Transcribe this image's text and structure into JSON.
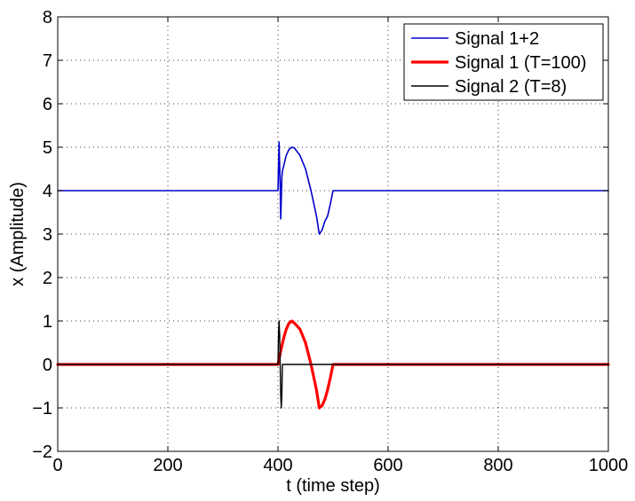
{
  "chart_data": {
    "type": "line",
    "xlabel": "t (time step)",
    "ylabel": "x (Amplitude)",
    "xlim": [
      0,
      1000
    ],
    "ylim": [
      -2,
      8
    ],
    "xticks": [
      0,
      200,
      400,
      600,
      800,
      1000
    ],
    "yticks": [
      -2,
      -1,
      0,
      1,
      2,
      3,
      4,
      5,
      6,
      7,
      8
    ],
    "xtick_labels": [
      "0",
      "200",
      "400",
      "600",
      "800",
      "1000"
    ],
    "ytick_labels": [
      "−2",
      "−1",
      "0",
      "1",
      "2",
      "3",
      "4",
      "5",
      "6",
      "7",
      "8"
    ],
    "grid": true,
    "legend_position": "top-right",
    "series": [
      {
        "name": "Signal 1+2",
        "color": "#0000cc",
        "x": [
          0,
          400,
          401,
          402,
          403,
          404,
          405,
          406,
          407,
          408,
          410,
          415,
          420,
          425,
          430,
          440,
          450,
          460,
          470,
          475,
          480,
          485,
          490,
          495,
          500,
          1000
        ],
        "y": [
          4,
          4,
          4.56,
          5.12,
          4.6,
          4.1,
          3.35,
          3.8,
          4.3,
          4.45,
          4.55,
          4.81,
          4.95,
          5.0,
          4.98,
          4.81,
          4.5,
          4.0,
          3.41,
          3.0,
          3.09,
          3.29,
          3.41,
          3.69,
          4.0,
          4.0
        ]
      },
      {
        "name": "Signal 1 (T=100)",
        "color": "#ff0000",
        "x": [
          0,
          400,
          405,
          410,
          415,
          420,
          425,
          430,
          440,
          450,
          460,
          470,
          475,
          480,
          485,
          490,
          495,
          500,
          1000
        ],
        "y": [
          0,
          0,
          0.31,
          0.59,
          0.81,
          0.95,
          1.0,
          0.95,
          0.81,
          0.5,
          0.0,
          -0.59,
          -1.0,
          -0.95,
          -0.81,
          -0.59,
          -0.31,
          0.0,
          0.0
        ]
      },
      {
        "name": "Signal 2 (T=8)",
        "color": "#000000",
        "x": [
          0,
          400,
          401,
          402,
          403,
          404,
          405,
          406,
          407,
          408,
          1000
        ],
        "y": [
          0,
          0,
          0.71,
          1.0,
          0.71,
          0.0,
          -0.71,
          -1.0,
          -0.71,
          0.0,
          0.0
        ]
      }
    ]
  },
  "legend": {
    "entries": [
      "Signal 1+2",
      "Signal 1 (T=100)",
      "Signal 2 (T=8)"
    ]
  }
}
